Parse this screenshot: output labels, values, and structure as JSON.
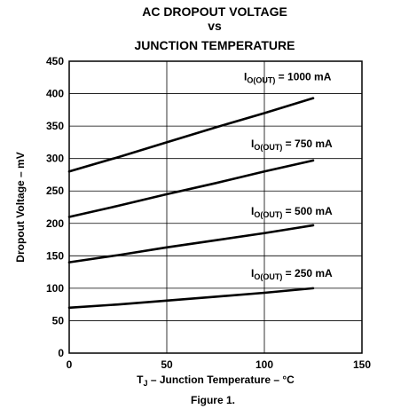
{
  "chart_data": {
    "type": "line",
    "title": [
      "AC DROPOUT VOLTAGE",
      "vs",
      "JUNCTION TEMPERATURE"
    ],
    "xlabel": {
      "main": "T",
      "sub": "J",
      "rest": " – Junction Temperature – °C"
    },
    "ylabel": "Dropout Voltage – mV",
    "caption": "Figure 1.",
    "xlim": [
      0,
      150
    ],
    "ylim": [
      0,
      450
    ],
    "xticks": [
      0,
      50,
      100,
      150
    ],
    "yticks": [
      0,
      50,
      100,
      150,
      200,
      250,
      300,
      350,
      400,
      450
    ],
    "grid": true,
    "series": [
      {
        "name": "I_O(OUT) = 1000 mA",
        "label_main": "I",
        "label_sub": "O(OUT)",
        "label_rest": " = 1000 mA",
        "x": [
          0,
          25,
          50,
          75,
          100,
          125
        ],
        "y": [
          280,
          302,
          325,
          348,
          370,
          393
        ]
      },
      {
        "name": "I_O(OUT) = 750 mA",
        "label_main": "I",
        "label_sub": "O(OUT)",
        "label_rest": " = 750 mA",
        "x": [
          0,
          25,
          50,
          75,
          100,
          125
        ],
        "y": [
          210,
          227,
          245,
          262,
          280,
          297
        ]
      },
      {
        "name": "I_O(OUT) = 500 mA",
        "label_main": "I",
        "label_sub": "O(OUT)",
        "label_rest": " = 500 mA",
        "x": [
          0,
          25,
          50,
          75,
          100,
          125
        ],
        "y": [
          140,
          151,
          163,
          174,
          185,
          197
        ]
      },
      {
        "name": "I_O(OUT) = 250 mA",
        "label_main": "I",
        "label_sub": "O(OUT)",
        "label_rest": " = 250 mA",
        "x": [
          0,
          25,
          50,
          75,
          100,
          125
        ],
        "y": [
          70,
          75,
          81,
          87,
          93,
          100
        ]
      }
    ]
  }
}
